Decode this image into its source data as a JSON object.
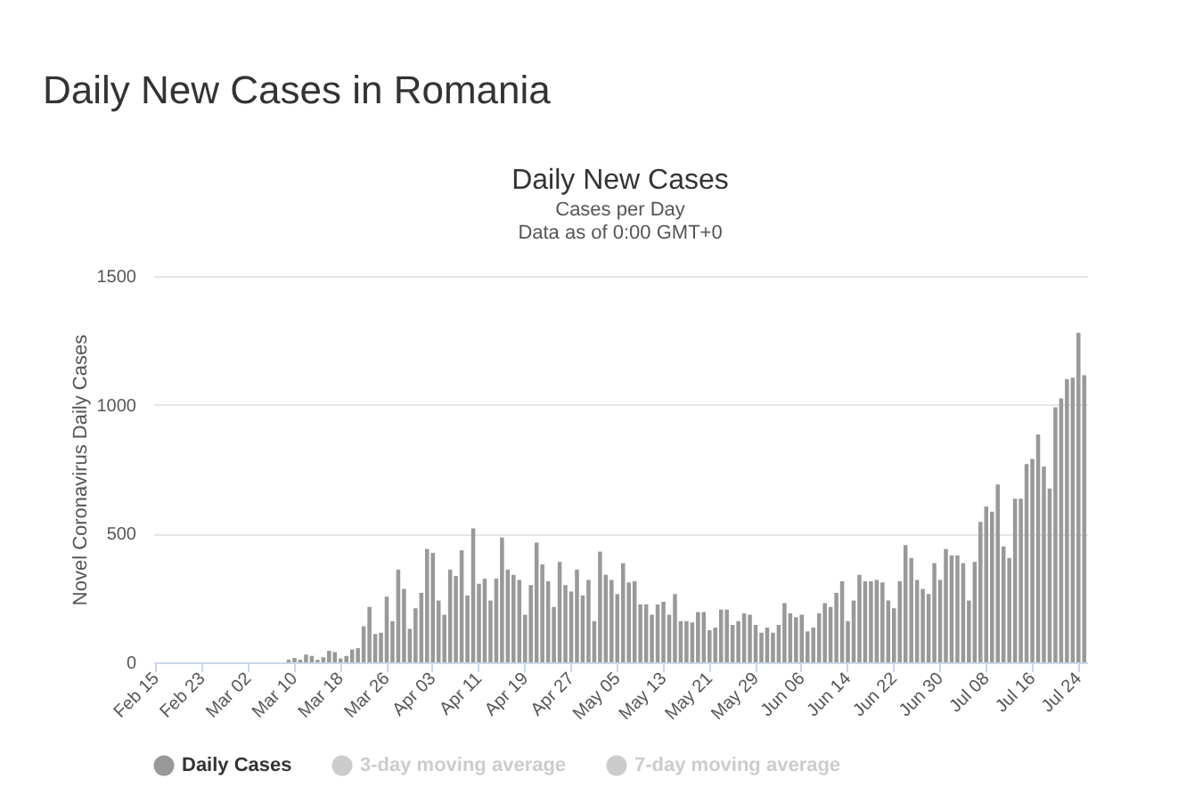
{
  "chart_data": {
    "type": "bar",
    "title": "Daily New Cases in Romania",
    "subtitle": "Daily New Cases",
    "annotations": [
      "Cases per Day",
      "Data as of 0:00 GMT+0"
    ],
    "ylabel": "Novel Coronavirus Daily Cases",
    "categories": [
      "Feb 15",
      null,
      null,
      null,
      null,
      null,
      null,
      null,
      "Feb 23",
      null,
      null,
      null,
      null,
      null,
      null,
      null,
      "Mar 02",
      null,
      null,
      null,
      null,
      null,
      null,
      null,
      "Mar 10",
      null,
      null,
      null,
      null,
      null,
      null,
      null,
      "Mar 18",
      null,
      null,
      null,
      null,
      null,
      null,
      null,
      "Mar 26",
      null,
      null,
      null,
      null,
      null,
      null,
      null,
      "Apr 03",
      null,
      null,
      null,
      null,
      null,
      null,
      null,
      "Apr 11",
      null,
      null,
      null,
      null,
      null,
      null,
      null,
      "Apr 19",
      null,
      null,
      null,
      null,
      null,
      null,
      null,
      "Apr 27",
      null,
      null,
      null,
      null,
      null,
      null,
      null,
      "May 05",
      null,
      null,
      null,
      null,
      null,
      null,
      null,
      "May 13",
      null,
      null,
      null,
      null,
      null,
      null,
      null,
      "May 21",
      null,
      null,
      null,
      null,
      null,
      null,
      null,
      "May 29",
      null,
      null,
      null,
      null,
      null,
      null,
      null,
      "Jun 06",
      null,
      null,
      null,
      null,
      null,
      null,
      null,
      "Jun 14",
      null,
      null,
      null,
      null,
      null,
      null,
      null,
      "Jun 22",
      null,
      null,
      null,
      null,
      null,
      null,
      null,
      "Jun 30",
      null,
      null,
      null,
      null,
      null,
      null,
      null,
      "Jul 08",
      null,
      null,
      null,
      null,
      null,
      null,
      null,
      "Jul 16",
      null,
      null,
      null,
      null,
      null,
      null,
      null,
      "Jul 24",
      null
    ],
    "series": [
      {
        "name": "Daily Cases",
        "color": "#999999",
        "values": [
          0,
          0,
          0,
          0,
          0,
          0,
          0,
          0,
          0,
          0,
          0,
          0,
          0,
          0,
          0,
          0,
          0,
          0,
          0,
          0,
          0,
          0,
          0,
          10,
          17,
          10,
          30,
          25,
          10,
          20,
          45,
          40,
          15,
          25,
          50,
          55,
          140,
          215,
          110,
          115,
          255,
          160,
          360,
          285,
          130,
          210,
          270,
          440,
          425,
          240,
          185,
          360,
          335,
          435,
          260,
          520,
          305,
          325,
          240,
          325,
          485,
          360,
          340,
          320,
          185,
          300,
          465,
          380,
          315,
          215,
          390,
          300,
          275,
          360,
          260,
          320,
          160,
          430,
          340,
          320,
          265,
          385,
          310,
          315,
          225,
          225,
          185,
          225,
          235,
          185,
          265,
          160,
          160,
          155,
          195,
          195,
          125,
          135,
          205,
          205,
          145,
          160,
          190,
          185,
          145,
          115,
          135,
          115,
          145,
          230,
          190,
          175,
          185,
          120,
          135,
          190,
          230,
          215,
          270,
          315,
          160,
          240,
          340,
          315,
          315,
          320,
          310,
          240,
          210,
          315,
          455,
          405,
          320,
          285,
          265,
          385,
          320,
          440,
          415,
          415,
          385,
          240,
          390,
          545,
          605,
          585,
          690,
          450,
          405,
          635,
          635,
          770,
          790,
          885,
          760,
          675,
          990,
          1025,
          1100,
          1105,
          1280,
          1115
        ]
      },
      {
        "name": "3-day moving average",
        "type": "line",
        "color": "#cccccc",
        "values": [
          null,
          null,
          null,
          null,
          null,
          null,
          null,
          null,
          null,
          null,
          null,
          null,
          null,
          null,
          null,
          null,
          null,
          null,
          null,
          null,
          null,
          null,
          null,
          null,
          null,
          null,
          null,
          null,
          null,
          null,
          null,
          null,
          null,
          null,
          null,
          null,
          null,
          null,
          null,
          null,
          null,
          null,
          null,
          null,
          null,
          null,
          null,
          null,
          null,
          null,
          null,
          null,
          null,
          null,
          null,
          null,
          null,
          null,
          null,
          null,
          null,
          null,
          null,
          null,
          null,
          null,
          null,
          null,
          null,
          null,
          null,
          null,
          null,
          null,
          null,
          null,
          null,
          null,
          null,
          null,
          null,
          null,
          null,
          null,
          null,
          null,
          null,
          null,
          null,
          null,
          null,
          null,
          null,
          null,
          null,
          null,
          null,
          null,
          null,
          null,
          null,
          null,
          null,
          null,
          null,
          null,
          null,
          null,
          null,
          null,
          null,
          null,
          null,
          null,
          null,
          null,
          null,
          null,
          null,
          null,
          null,
          null,
          null,
          null,
          null,
          null,
          null,
          null,
          null,
          null,
          null,
          null,
          null,
          null,
          null,
          null,
          null,
          null,
          null,
          null,
          null,
          null,
          null,
          null,
          null,
          null,
          null,
          null,
          null,
          null,
          null,
          null,
          null,
          null,
          null,
          null,
          null,
          null,
          null,
          null,
          null,
          null
        ]
      },
      {
        "name": "7-day moving average",
        "type": "line",
        "color": "#cccccc",
        "values": [
          null,
          null,
          null,
          null,
          null,
          null,
          null,
          null,
          null,
          null,
          null,
          null,
          null,
          null,
          null,
          null,
          null,
          null,
          null,
          null,
          null,
          null,
          null,
          null,
          null,
          null,
          null,
          null,
          null,
          null,
          null,
          null,
          null,
          null,
          null,
          null,
          null,
          null,
          null,
          null,
          null,
          null,
          null,
          null,
          null,
          null,
          null,
          null,
          null,
          null,
          null,
          null,
          null,
          null,
          null,
          null,
          null,
          null,
          null,
          null,
          null,
          null,
          null,
          null,
          null,
          null,
          null,
          null,
          null,
          null,
          null,
          null,
          null,
          null,
          null,
          null,
          null,
          null,
          null,
          null,
          null,
          null,
          null,
          null,
          null,
          null,
          null,
          null,
          null,
          null,
          null,
          null,
          null,
          null,
          null,
          null,
          null,
          null,
          null,
          null,
          null,
          null,
          null,
          null,
          null,
          null,
          null,
          null,
          null,
          null,
          null,
          null,
          null,
          null,
          null,
          null,
          null,
          null,
          null,
          null,
          null,
          null,
          null,
          null,
          null,
          null,
          null,
          null,
          null,
          null,
          null,
          null,
          null,
          null,
          null,
          null,
          null,
          null,
          null,
          null,
          null,
          null,
          null,
          null,
          null,
          null,
          null,
          null,
          null,
          null,
          null,
          null,
          null,
          null,
          null,
          null,
          null,
          null,
          null,
          null,
          null,
          null
        ]
      }
    ],
    "ylim": [
      0,
      1500
    ],
    "yticks": [
      0,
      500,
      1000,
      1500
    ],
    "grid": "y",
    "legend": "bottom"
  }
}
